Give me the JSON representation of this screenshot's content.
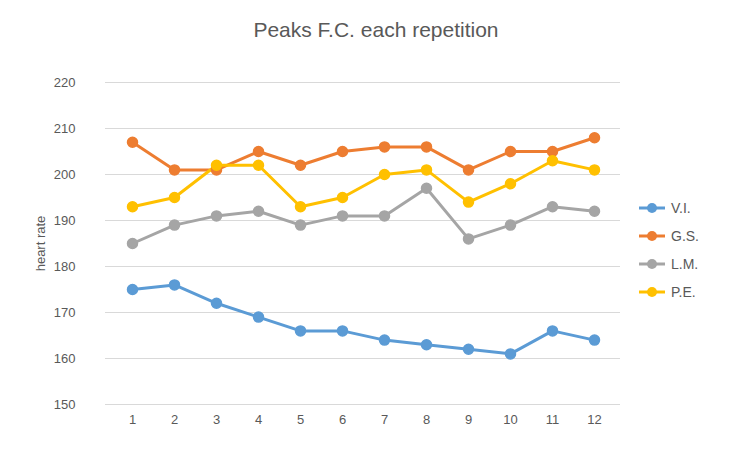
{
  "chart_data": {
    "type": "line",
    "title": "Peaks F.C. each repetition",
    "y_label": "heart rate",
    "categories": [
      "1",
      "2",
      "3",
      "4",
      "5",
      "6",
      "7",
      "8",
      "9",
      "10",
      "11",
      "12"
    ],
    "series": [
      {
        "name": "V.I.",
        "color": "#5B9BD5",
        "values": [
          175,
          176,
          172,
          169,
          166,
          166,
          164,
          163,
          162,
          161,
          166,
          164
        ]
      },
      {
        "name": "G.S.",
        "color": "#ED7D31",
        "values": [
          207,
          201,
          201,
          205,
          202,
          205,
          206,
          206,
          201,
          205,
          205,
          208
        ]
      },
      {
        "name": "L.M.",
        "color": "#A5A5A5",
        "values": [
          185,
          189,
          191,
          192,
          189,
          191,
          191,
          197,
          186,
          189,
          193,
          192
        ]
      },
      {
        "name": "P.E.",
        "color": "#FFC000",
        "values": [
          193,
          195,
          202,
          202,
          193,
          195,
          200,
          201,
          194,
          198,
          203,
          201
        ]
      }
    ],
    "ylim": [
      150,
      220
    ],
    "yticks": [
      150,
      160,
      170,
      180,
      190,
      200,
      210,
      220
    ],
    "grid": true,
    "legend": "right",
    "marker": "circle"
  }
}
